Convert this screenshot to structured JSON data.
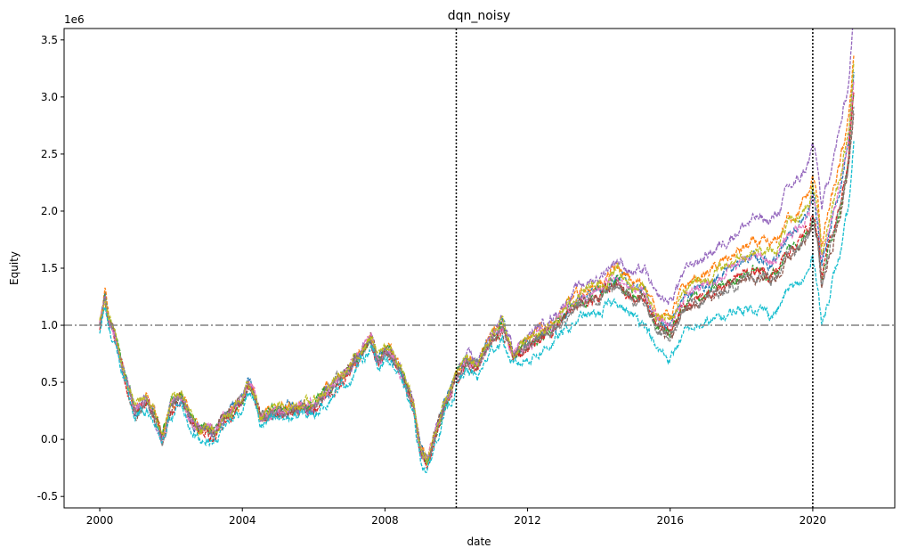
{
  "chart_data": {
    "type": "line",
    "title": "dqn_noisy",
    "xlabel": "date",
    "ylabel": "Equity",
    "y_offset_text": "1e6",
    "xlim": [
      1999.0,
      2022.3
    ],
    "ylim": [
      -0.6,
      3.6
    ],
    "x_ticks": [
      2000,
      2004,
      2008,
      2012,
      2016,
      2020
    ],
    "x_tick_labels": [
      "2000",
      "2004",
      "2008",
      "2012",
      "2016",
      "2020"
    ],
    "y_ticks": [
      -0.5,
      0.0,
      0.5,
      1.0,
      1.5,
      2.0,
      2.5,
      3.0,
      3.5
    ],
    "y_tick_labels": [
      "-0.5",
      "0.0",
      "0.5",
      "1.0",
      "1.5",
      "2.0",
      "2.5",
      "3.0",
      "3.5"
    ],
    "grid": false,
    "reference_lines": {
      "horizontal": {
        "y": 1.0,
        "style": "dashdot",
        "color": "#808080"
      },
      "vertical": [
        {
          "x": 2010.0,
          "style": "dotted",
          "color": "#000000"
        },
        {
          "x": 2020.0,
          "style": "dotted",
          "color": "#000000"
        }
      ]
    },
    "base_path": {
      "x": [
        2000.0,
        2000.15,
        2000.25,
        2000.4,
        2000.55,
        2000.8,
        2001.0,
        2001.3,
        2001.5,
        2001.75,
        2002.0,
        2002.3,
        2002.5,
        2002.8,
        2003.0,
        2003.2,
        2003.5,
        2003.8,
        2004.0,
        2004.15,
        2004.3,
        2004.5,
        2005.0,
        2005.5,
        2006.0,
        2006.3,
        2006.6,
        2007.0,
        2007.4,
        2007.6,
        2007.8,
        2008.0,
        2008.2,
        2008.5,
        2008.8,
        2009.0,
        2009.2,
        2009.5,
        2010.0,
        2010.3,
        2010.6,
        2011.0,
        2011.3,
        2011.6,
        2012.0,
        2012.5,
        2013.0,
        2013.5,
        2014.0,
        2014.5,
        2014.8,
        2015.0,
        2015.3,
        2015.6,
        2016.0,
        2016.3,
        2016.6,
        2017.0,
        2017.5,
        2018.0,
        2018.4,
        2018.8,
        2019.0,
        2019.3,
        2019.6,
        2019.9,
        2020.0,
        2020.15,
        2020.25,
        2020.5,
        2020.75,
        2021.0,
        2021.15
      ],
      "y": [
        1.0,
        1.25,
        1.05,
        0.95,
        0.75,
        0.45,
        0.25,
        0.35,
        0.25,
        0.0,
        0.3,
        0.38,
        0.2,
        0.08,
        0.1,
        0.05,
        0.2,
        0.28,
        0.35,
        0.5,
        0.45,
        0.2,
        0.25,
        0.28,
        0.3,
        0.4,
        0.5,
        0.6,
        0.8,
        0.9,
        0.7,
        0.8,
        0.75,
        0.55,
        0.3,
        -0.1,
        -0.2,
        0.15,
        0.55,
        0.7,
        0.65,
        0.9,
        1.0,
        0.75,
        0.85,
        0.95,
        1.1,
        1.25,
        1.3,
        1.45,
        1.35,
        1.3,
        1.3,
        1.05,
        1.0,
        1.2,
        1.3,
        1.35,
        1.45,
        1.55,
        1.6,
        1.55,
        1.6,
        1.8,
        1.85,
        2.0,
        2.15,
        1.9,
        1.55,
        1.9,
        2.2,
        2.6,
        3.2
      ]
    },
    "series": [
      {
        "color": "#1f77b4",
        "offset": 0.0,
        "growth": 0.0,
        "style": "dashed"
      },
      {
        "color": "#ff7f0e",
        "offset": 0.01,
        "growth": 0.035,
        "style": "dashed"
      },
      {
        "color": "#2ca02c",
        "offset": 0.0,
        "growth": -0.035,
        "style": "dashed"
      },
      {
        "color": "#d62728",
        "offset": -0.03,
        "growth": -0.025,
        "style": "dashed"
      },
      {
        "color": "#9467bd",
        "offset": 0.0,
        "growth": 0.105,
        "style": "dashed"
      },
      {
        "color": "#8c564b",
        "offset": 0.0,
        "growth": -0.055,
        "style": "dashed"
      },
      {
        "color": "#e377c2",
        "offset": 0.0,
        "growth": 0.0,
        "style": "dashed"
      },
      {
        "color": "#7f7f7f",
        "offset": -0.01,
        "growth": -0.045,
        "style": "dashed"
      },
      {
        "color": "#bcbd22",
        "offset": 0.02,
        "growth": 0.015,
        "style": "dashed"
      },
      {
        "color": "#17becf",
        "offset": -0.08,
        "growth": -0.11,
        "style": "dashed"
      }
    ]
  }
}
